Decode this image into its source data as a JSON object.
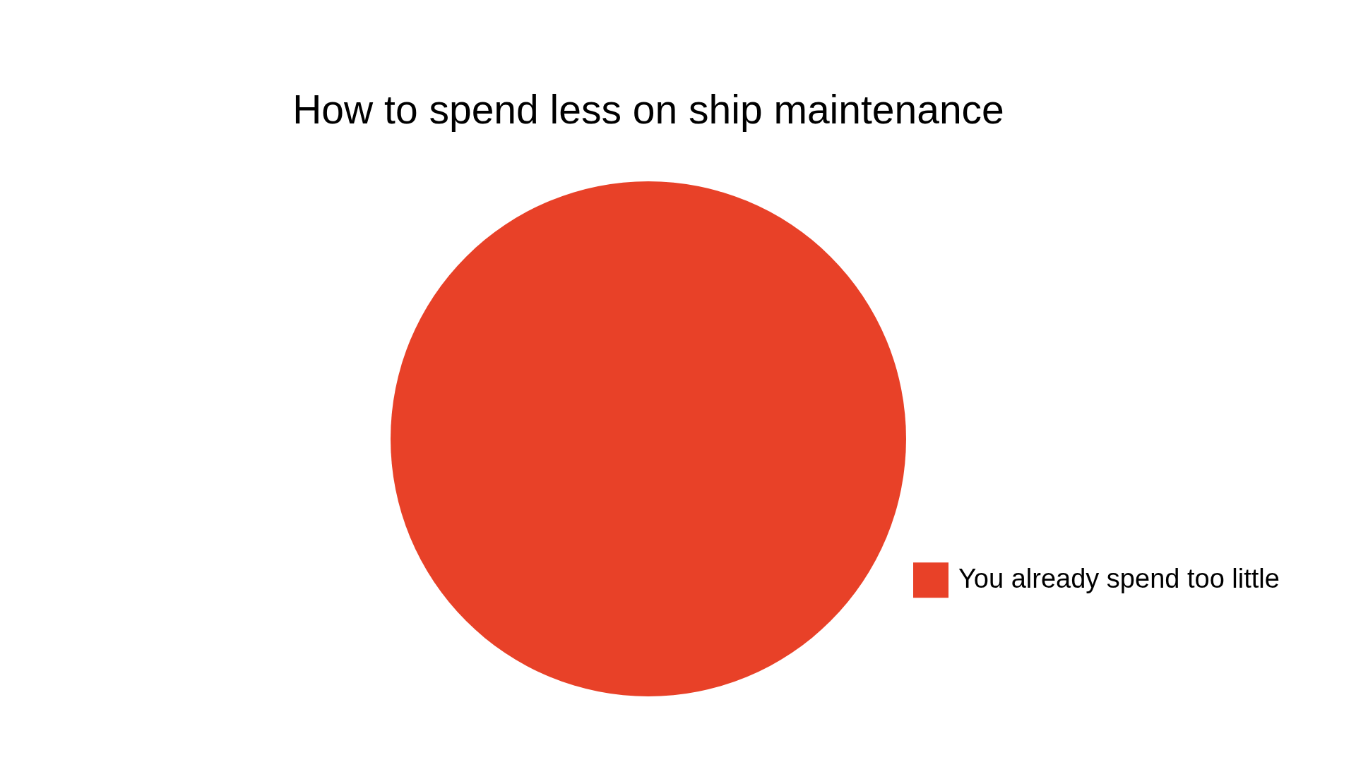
{
  "chart_data": {
    "type": "pie",
    "title": "How to spend less on ship maintenance",
    "categories": [
      "You already spend too little"
    ],
    "values": [
      100
    ],
    "colors": [
      "#e84128"
    ],
    "legend": "bottom right"
  }
}
